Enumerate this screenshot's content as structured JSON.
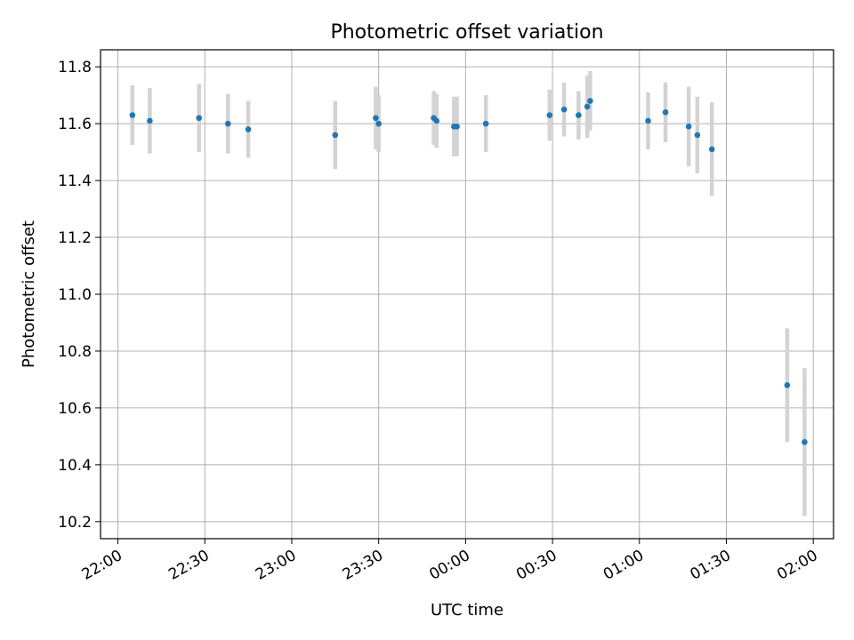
{
  "chart_data": {
    "type": "scatter",
    "title": "Photometric offset variation",
    "xlabel": "UTC time",
    "ylabel": "Photometric offset",
    "grid": true,
    "legend": "none",
    "xlim": [
      "21:54",
      "02:07"
    ],
    "ylim": [
      10.14,
      11.86
    ],
    "xticks": [
      "22:00",
      "22:30",
      "23:00",
      "23:30",
      "00:00",
      "00:30",
      "01:00",
      "01:30",
      "02:00"
    ],
    "yticks": [
      "10.2",
      "10.4",
      "10.6",
      "10.8",
      "11.0",
      "11.2",
      "11.4",
      "11.6",
      "11.8"
    ],
    "colors": {
      "point": "#1f77b4",
      "errorbar": "#d3d3d3",
      "grid": "#b0b0b0"
    },
    "series": [
      {
        "x": [
          "22:05",
          "22:11",
          "22:28",
          "22:38",
          "22:45",
          "23:15",
          "23:29",
          "23:30",
          "23:49",
          "23:50",
          "23:56",
          "23:57",
          "00:07",
          "00:29",
          "00:34",
          "00:39",
          "00:42",
          "00:43",
          "01:03",
          "01:09",
          "01:17",
          "01:20",
          "01:25",
          "01:51",
          "01:57"
        ],
        "y": [
          11.63,
          11.61,
          11.62,
          11.6,
          11.58,
          11.56,
          11.62,
          11.6,
          11.62,
          11.61,
          11.59,
          11.59,
          11.6,
          11.63,
          11.65,
          11.63,
          11.66,
          11.68,
          11.61,
          11.64,
          11.59,
          11.56,
          11.51,
          10.68,
          10.48
        ],
        "yerr": [
          0.105,
          0.115,
          0.12,
          0.105,
          0.1,
          0.12,
          0.11,
          0.1,
          0.095,
          0.095,
          0.105,
          0.105,
          0.1,
          0.09,
          0.095,
          0.085,
          0.11,
          0.105,
          0.1,
          0.105,
          0.14,
          0.135,
          0.165,
          0.2,
          0.26
        ]
      }
    ]
  }
}
